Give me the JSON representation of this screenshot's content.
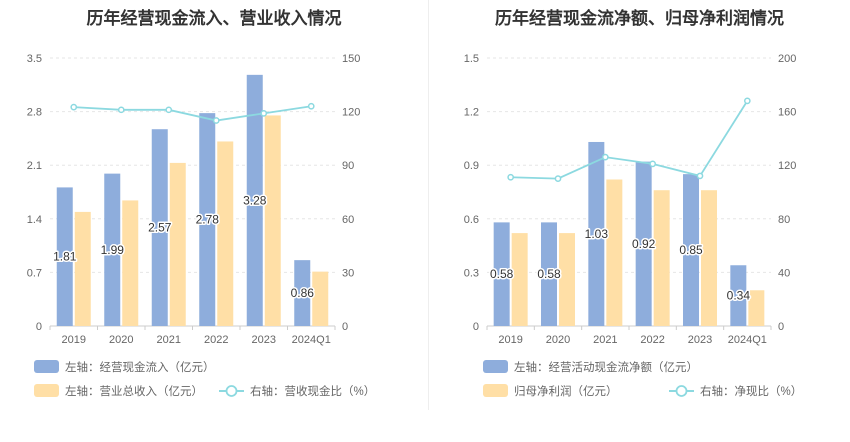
{
  "chart_data": [
    {
      "type": "bar",
      "title": "历年经营现金流入、营业收入情况",
      "categories": [
        "2019",
        "2020",
        "2021",
        "2022",
        "2023",
        "2024Q1"
      ],
      "left_axis": {
        "ticks": [
          "0",
          "0.7",
          "1.4",
          "2.1",
          "2.8",
          "3.5"
        ],
        "ylim": [
          0,
          3.5
        ]
      },
      "right_axis": {
        "ticks": [
          "0",
          "30",
          "60",
          "90",
          "120",
          "150"
        ],
        "ylim": [
          0,
          150
        ]
      },
      "series": [
        {
          "name": "左轴：经营现金流入（亿元）",
          "axis": "left",
          "kind": "bar",
          "color": "#8EADDC",
          "values": [
            1.81,
            1.99,
            2.57,
            2.78,
            3.28,
            0.86
          ],
          "labels": [
            "1.81",
            "1.99",
            "2.57",
            "2.78",
            "3.28",
            "0.86"
          ]
        },
        {
          "name": "左轴：营业总收入（亿元）",
          "axis": "left",
          "kind": "bar",
          "color": "#FFDFA6",
          "values": [
            1.49,
            1.64,
            2.13,
            2.41,
            2.75,
            0.71
          ]
        },
        {
          "name": "右轴：营收现金比（%）",
          "axis": "right",
          "kind": "line",
          "color": "#8CD9E0",
          "values": [
            122.5,
            121,
            121,
            115,
            119,
            123
          ]
        }
      ]
    },
    {
      "type": "bar",
      "title": "历年经营现金流净额、归母净利润情况",
      "categories": [
        "2019",
        "2020",
        "2021",
        "2022",
        "2023",
        "2024Q1"
      ],
      "left_axis": {
        "ticks": [
          "0",
          "0.3",
          "0.6",
          "0.9",
          "1.2",
          "1.5"
        ],
        "ylim": [
          0,
          1.5
        ]
      },
      "right_axis": {
        "ticks": [
          "0",
          "40",
          "80",
          "120",
          "160",
          "200"
        ],
        "ylim": [
          0,
          200
        ]
      },
      "series": [
        {
          "name": "左轴：经营活动现金流净额（亿元）",
          "axis": "left",
          "kind": "bar",
          "color": "#8EADDC",
          "values": [
            0.58,
            0.58,
            1.03,
            0.92,
            0.85,
            0.34
          ],
          "labels": [
            "0.58",
            "0.58",
            "1.03",
            "0.92",
            "0.85",
            "0.34"
          ]
        },
        {
          "name": "归母净利润（亿元）",
          "axis": "left",
          "kind": "bar",
          "color": "#FFDFA6",
          "values": [
            0.52,
            0.52,
            0.82,
            0.76,
            0.76,
            0.2
          ]
        },
        {
          "name": "右轴：净现比（%）",
          "axis": "right",
          "kind": "line",
          "color": "#8CD9E0",
          "values": [
            111,
            110,
            126,
            121,
            112,
            168
          ]
        }
      ]
    }
  ]
}
